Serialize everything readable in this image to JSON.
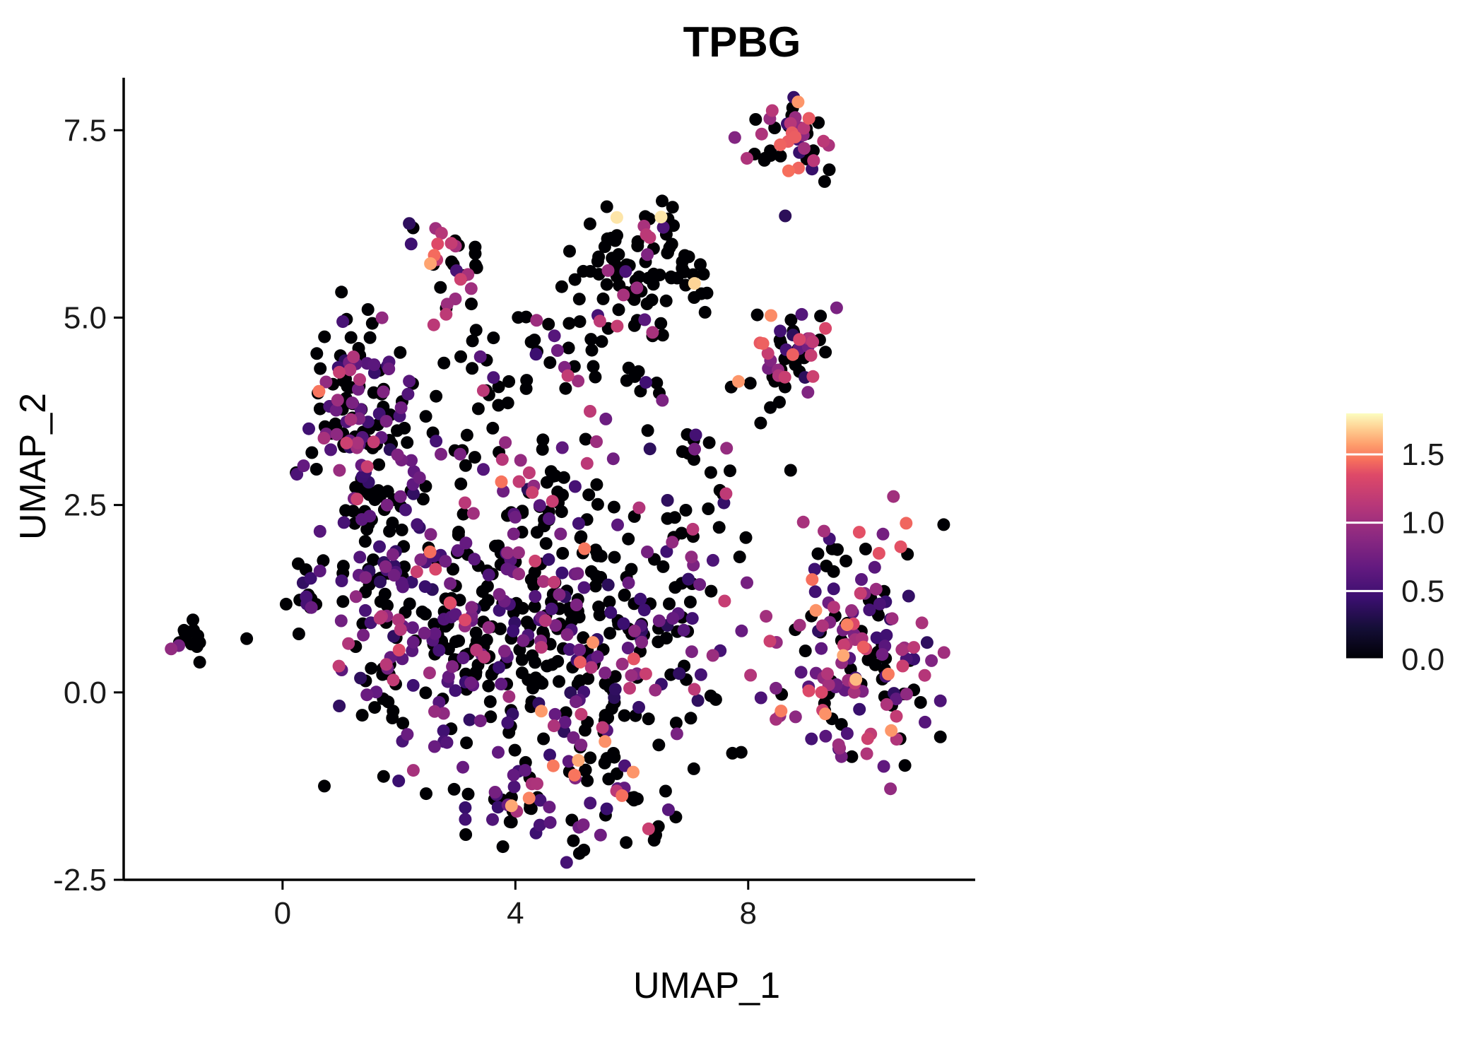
{
  "chart_data": {
    "type": "scatter",
    "title": "TPBG",
    "xlabel": "UMAP_1",
    "ylabel": "UMAP_2",
    "xlim": [
      -2.73,
      11.9
    ],
    "ylim": [
      -2.5,
      8.2
    ],
    "x_ticks": [
      0,
      4,
      8
    ],
    "x_tick_labels": [
      "0",
      "4",
      "8"
    ],
    "y_ticks": [
      -2.5,
      0.0,
      2.5,
      5.0,
      7.5
    ],
    "y_tick_labels": [
      "-2.5",
      "0.0",
      "2.5",
      "5.0",
      "7.5"
    ],
    "grid": false,
    "legend_position": "right",
    "color_encoding": "gene expression level (TPBG)",
    "colorbar": {
      "ticks": [
        0.0,
        0.5,
        1.0,
        1.5
      ],
      "tick_labels": [
        "0.0",
        "0.5",
        "1.0",
        "1.5"
      ],
      "vmin": 0,
      "vmax": 1.8,
      "colormap": "magma",
      "stops": [
        {
          "offset": 0.0,
          "color": "#000004"
        },
        {
          "offset": 0.125,
          "color": "#140e36"
        },
        {
          "offset": 0.25,
          "color": "#3b0f70"
        },
        {
          "offset": 0.375,
          "color": "#641a80"
        },
        {
          "offset": 0.5,
          "color": "#8c2981"
        },
        {
          "offset": 0.625,
          "color": "#b73779"
        },
        {
          "offset": 0.75,
          "color": "#de4968"
        },
        {
          "offset": 0.8125,
          "color": "#f7705c"
        },
        {
          "offset": 0.875,
          "color": "#fe9f6d"
        },
        {
          "offset": 0.9375,
          "color": "#fece91"
        },
        {
          "offset": 1.0,
          "color": "#fcfdbf"
        }
      ]
    },
    "value_bins": {
      "low": [
        0.35,
        0.85
      ],
      "mid": [
        0.9,
        1.25
      ],
      "high": [
        1.3,
        1.6
      ],
      "top": [
        1.62,
        1.8
      ]
    },
    "clusters": [
      {
        "name": "far-left-island",
        "cx": -1.62,
        "cy": 0.7,
        "sx": 0.16,
        "sy": 0.13,
        "n": 15,
        "mix": {
          "zero": 0.66,
          "low": 0.17,
          "mid": 0.17
        }
      },
      {
        "name": "left-small",
        "cx": 0.55,
        "cy": 1.4,
        "sx": 0.28,
        "sy": 0.18,
        "n": 16,
        "mix": {
          "zero": 0.8,
          "low": 0.2
        }
      },
      {
        "name": "left-upper-main",
        "cx": 1.3,
        "cy": 3.9,
        "sx": 0.48,
        "sy": 0.55,
        "n": 115,
        "mix": {
          "zero": 0.47,
          "low": 0.38,
          "mid": 0.13,
          "high": 0.02
        }
      },
      {
        "name": "left-upper-tail",
        "cx": 1.55,
        "cy": 2.7,
        "sx": 0.35,
        "sy": 0.35,
        "n": 28,
        "mix": {
          "zero": 0.6,
          "low": 0.3,
          "mid": 0.1
        }
      },
      {
        "name": "top-small",
        "cx": 2.9,
        "cy": 5.85,
        "sx": 0.26,
        "sy": 0.22,
        "n": 24,
        "mix": {
          "zero": 0.42,
          "low": 0.2,
          "mid": 0.34,
          "high": 0.04
        }
      },
      {
        "name": "top-small-below",
        "cx": 2.75,
        "cy": 5.15,
        "sx": 0.18,
        "sy": 0.15,
        "n": 5,
        "mix": {
          "zero": 0.6,
          "mid": 0.4
        }
      },
      {
        "name": "top-mid-main",
        "cx": 6.05,
        "cy": 5.55,
        "sx": 0.55,
        "sy": 0.42,
        "n": 95,
        "mix": {
          "zero": 0.86,
          "low": 0.05,
          "mid": 0.07,
          "high": 0.01,
          "top": 0.01
        }
      },
      {
        "name": "top-right",
        "cx": 8.7,
        "cy": 7.45,
        "sx": 0.4,
        "sy": 0.22,
        "n": 44,
        "mix": {
          "zero": 0.42,
          "low": 0.12,
          "mid": 0.26,
          "high": 0.18,
          "top": 0.02
        }
      },
      {
        "name": "top-right-below",
        "cx": 9.1,
        "cy": 6.9,
        "sx": 0.25,
        "sy": 0.3,
        "n": 6,
        "mix": {
          "zero": 0.5,
          "low": 0.2,
          "mid": 0.3
        }
      },
      {
        "name": "right-mid",
        "cx": 8.7,
        "cy": 4.5,
        "sx": 0.38,
        "sy": 0.45,
        "n": 48,
        "mix": {
          "zero": 0.44,
          "low": 0.2,
          "mid": 0.26,
          "high": 0.1
        }
      },
      {
        "name": "bottom-right-main",
        "cx": 9.9,
        "cy": 0.45,
        "sx": 0.7,
        "sy": 0.85,
        "n": 155,
        "mix": {
          "zero": 0.28,
          "low": 0.3,
          "mid": 0.26,
          "high": 0.14,
          "top": 0.02
        }
      },
      {
        "name": "bottom-right-east",
        "cx": 10.8,
        "cy": -0.1,
        "sx": 0.25,
        "sy": 0.5,
        "n": 12,
        "mix": {
          "zero": 0.5,
          "low": 0.3,
          "mid": 0.2
        }
      },
      {
        "name": "central-main",
        "cx": 4.3,
        "cy": 0.7,
        "sx": 1.4,
        "sy": 1.0,
        "n": 420,
        "mix": {
          "zero": 0.56,
          "low": 0.33,
          "mid": 0.07,
          "high": 0.04
        }
      },
      {
        "name": "central-left",
        "cx": 1.95,
        "cy": 1.2,
        "sx": 0.55,
        "sy": 0.9,
        "n": 85,
        "mix": {
          "zero": 0.55,
          "low": 0.35,
          "mid": 0.1
        }
      },
      {
        "name": "mid-connector",
        "cx": 4.4,
        "cy": 2.9,
        "sx": 1.05,
        "sy": 0.5,
        "n": 65,
        "mix": {
          "zero": 0.62,
          "low": 0.28,
          "mid": 0.1
        }
      },
      {
        "name": "bottom-tail",
        "cx": 4.9,
        "cy": -1.45,
        "sx": 0.95,
        "sy": 0.4,
        "n": 70,
        "mix": {
          "zero": 0.45,
          "low": 0.38,
          "mid": 0.12,
          "high": 0.05
        }
      },
      {
        "name": "mid-band",
        "cx": 4.4,
        "cy": 4.35,
        "sx": 0.85,
        "sy": 0.28,
        "n": 38,
        "mix": {
          "zero": 0.63,
          "low": 0.22,
          "mid": 0.14,
          "top": 0.01
        }
      },
      {
        "name": "right-connector",
        "cx": 7.1,
        "cy": 2.3,
        "sx": 0.45,
        "sy": 0.7,
        "n": 26,
        "mix": {
          "zero": 0.7,
          "low": 0.1,
          "mid": 0.2
        }
      },
      {
        "name": "central-right",
        "cx": 6.8,
        "cy": 0.3,
        "sx": 0.5,
        "sy": 0.8,
        "n": 30,
        "mix": {
          "zero": 0.6,
          "low": 0.2,
          "mid": 0.2
        }
      },
      {
        "name": "sparse-upper",
        "cx": 4.8,
        "cy": 4.8,
        "sx": 2.2,
        "sy": 0.6,
        "n": 16,
        "mix": {
          "zero": 0.88,
          "mid": 0.12
        }
      },
      {
        "name": "sparse-right",
        "cx": 7.6,
        "cy": 3.4,
        "sx": 0.6,
        "sy": 0.6,
        "n": 10,
        "mix": {
          "zero": 0.9,
          "low": 0.1
        }
      }
    ]
  }
}
